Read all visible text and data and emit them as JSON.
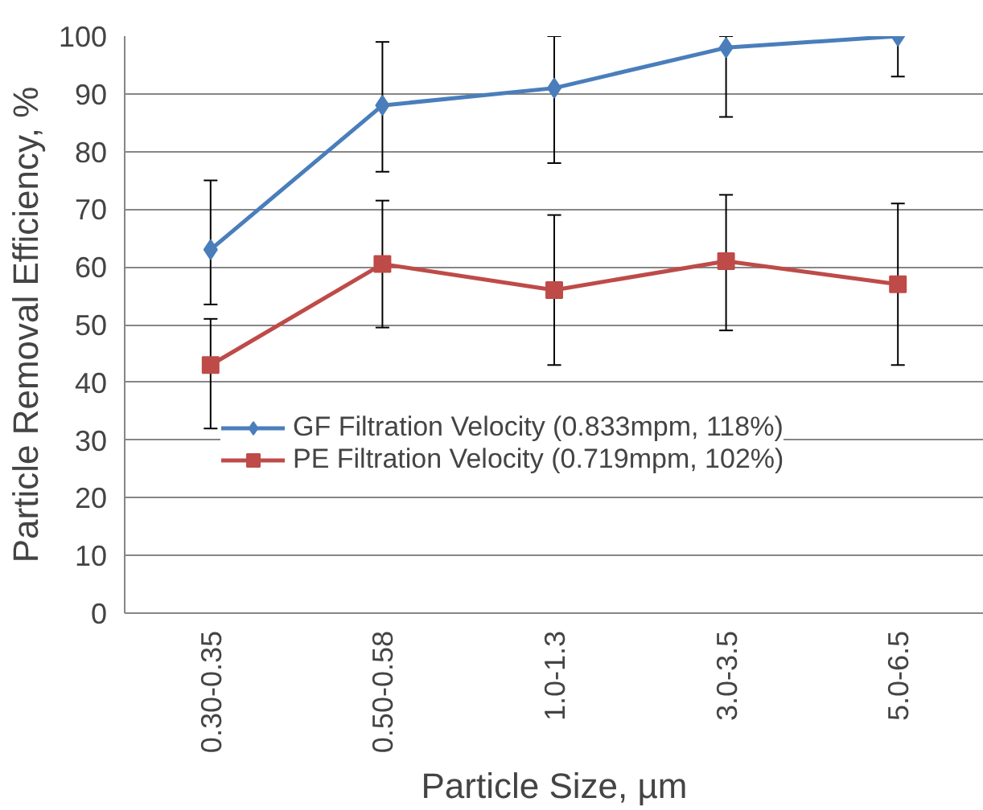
{
  "chart_data": {
    "type": "line",
    "xlabel": "Particle Size, µm",
    "ylabel": "Particle Removal Efficiency, %",
    "categories": [
      "0.30-0.35",
      "0.50-0.58",
      "1.0-1.3",
      "3.0-3.5",
      "5.0-6.5"
    ],
    "series": [
      {
        "name": "GF Filtration Velocity (0.833mpm, 118%)",
        "color": "#4a7ebb",
        "marker": "diamond",
        "values": [
          63,
          88,
          91,
          98,
          100
        ],
        "errors": [
          [
            53.5,
            75
          ],
          [
            76.5,
            99
          ],
          [
            78,
            100
          ],
          [
            86,
            100
          ],
          [
            93,
            100
          ]
        ]
      },
      {
        "name": "PE Filtration Velocity (0.719mpm, 102%)",
        "color": "#be4b48",
        "marker": "square",
        "values": [
          43,
          60.5,
          56,
          61,
          57
        ],
        "errors": [
          [
            32,
            51
          ],
          [
            49.5,
            71.5
          ],
          [
            43,
            69
          ],
          [
            49,
            72.5
          ],
          [
            43,
            71
          ]
        ]
      }
    ],
    "ylim": [
      0,
      100
    ],
    "yticks": [
      0,
      10,
      20,
      30,
      40,
      50,
      60,
      70,
      80,
      90,
      100
    ],
    "grid": "y",
    "legend": "bottom",
    "line_style": "solid"
  }
}
